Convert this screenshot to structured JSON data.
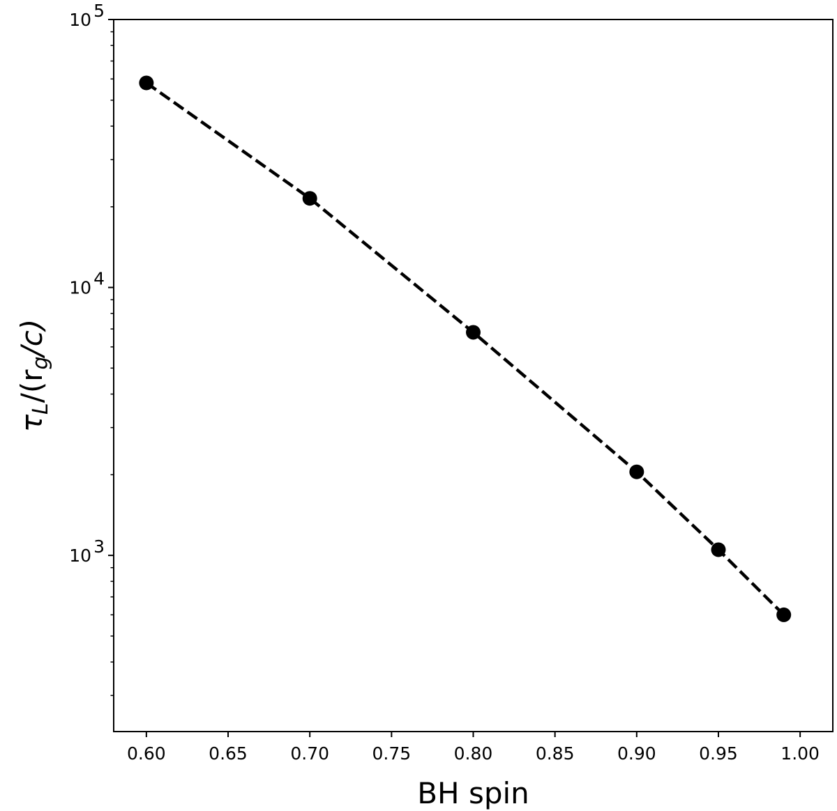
{
  "chart_data": {
    "type": "line",
    "xlabel": "BH spin",
    "ylabel": {
      "tau": "τ",
      "tau_sub": "L",
      "mid": "/(r",
      "r_sub": "g",
      "tail": "/c)"
    },
    "yscale": "log",
    "xlim": [
      0.58,
      1.02
    ],
    "ylim": [
      220,
      100000
    ],
    "x_ticks": [
      0.6,
      0.65,
      0.7,
      0.75,
      0.8,
      0.85,
      0.9,
      0.95,
      1.0
    ],
    "x_tick_labels": [
      "0.60",
      "0.65",
      "0.70",
      "0.75",
      "0.80",
      "0.85",
      "0.90",
      "0.95",
      "1.00"
    ],
    "y_ticks": [
      {
        "value": 1000,
        "base": "10",
        "exp": "3"
      },
      {
        "value": 10000,
        "base": "10",
        "exp": "4"
      },
      {
        "value": 100000,
        "base": "10",
        "exp": "5"
      }
    ],
    "grid": false,
    "series": [
      {
        "line_style": "dashed",
        "marker": "circle",
        "color": "#000000",
        "x": [
          0.6,
          0.7,
          0.8,
          0.9,
          0.95,
          0.99
        ],
        "y": [
          58000,
          21500,
          6800,
          2050,
          1050,
          600
        ]
      }
    ]
  }
}
